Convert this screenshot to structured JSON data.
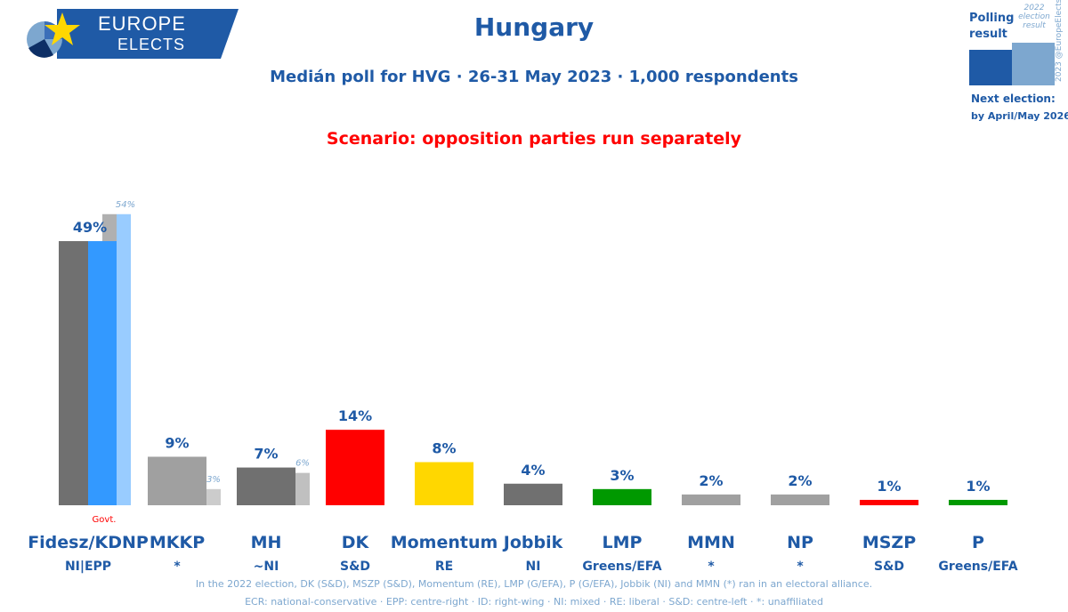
{
  "logo": {
    "line1": "EUROPE",
    "line2": "ELECTS"
  },
  "header": {
    "title": "Hungary",
    "subtitle": "Medián poll for HVG · 26-31 May 2023 · 1,000 respondents",
    "scenario": "Scenario: opposition parties run separately"
  },
  "legend": {
    "polling_label": "Polling result",
    "prev_label": "2022 election result",
    "copyright": "2023 @EuropeElects",
    "next_election_label": "Next election:",
    "next_election_value": "by April/May 2026",
    "colors": {
      "poll": "#1f5aa6",
      "previous": "#7da7cf"
    }
  },
  "chart_data": {
    "type": "bar",
    "title": "Hungary",
    "ylim": [
      0,
      60
    ],
    "grid": false,
    "parties": [
      {
        "name": "Fidesz/KDNP",
        "group": "NI|EPP",
        "value": 49,
        "label": "49%",
        "prev": 54,
        "prev_label": "54%",
        "color": "#3399ff",
        "ghost_color": "#707070",
        "prev_color": "#99ccff",
        "badge": "Govt."
      },
      {
        "name": "MKKP",
        "group": "*",
        "value": 9,
        "label": "9%",
        "prev": 3,
        "prev_label": "3%",
        "color": "#a0a0a0",
        "prev_color": "#cccccc"
      },
      {
        "name": "MH",
        "group": "~NI",
        "value": 7,
        "label": "7%",
        "prev": 6,
        "prev_label": "6%",
        "color": "#707070",
        "prev_color": "#c0c0c0"
      },
      {
        "name": "DK",
        "group": "S&D",
        "value": 14,
        "label": "14%",
        "color": "#ff0000"
      },
      {
        "name": "Momentum",
        "group": "RE",
        "value": 8,
        "label": "8%",
        "color": "#ffd700"
      },
      {
        "name": "Jobbik",
        "group": "NI",
        "value": 4,
        "label": "4%",
        "color": "#707070"
      },
      {
        "name": "LMP",
        "group": "Greens/EFA",
        "value": 3,
        "label": "3%",
        "color": "#009900"
      },
      {
        "name": "MMN",
        "group": "*",
        "value": 2,
        "label": "2%",
        "color": "#a0a0a0"
      },
      {
        "name": "NP",
        "group": "*",
        "value": 2,
        "label": "2%",
        "color": "#a0a0a0"
      },
      {
        "name": "MSZP",
        "group": "S&D",
        "value": 1,
        "label": "1%",
        "color": "#ff0000"
      },
      {
        "name": "P",
        "group": "Greens/EFA",
        "value": 1,
        "label": "1%",
        "color": "#009900"
      }
    ]
  },
  "footnotes": {
    "line1": "In the 2022 election, DK (S&D), MSZP (S&D), Momentum (RE), LMP (G/EFA), P (G/EFA), Jobbik (NI) and MMN (*) ran in an electoral alliance.",
    "line2": "ECR: national-conservative · EPP: centre-right · ID: right-wing · NI: mixed · RE: liberal · S&D: centre-left · *: unaffiliated"
  }
}
